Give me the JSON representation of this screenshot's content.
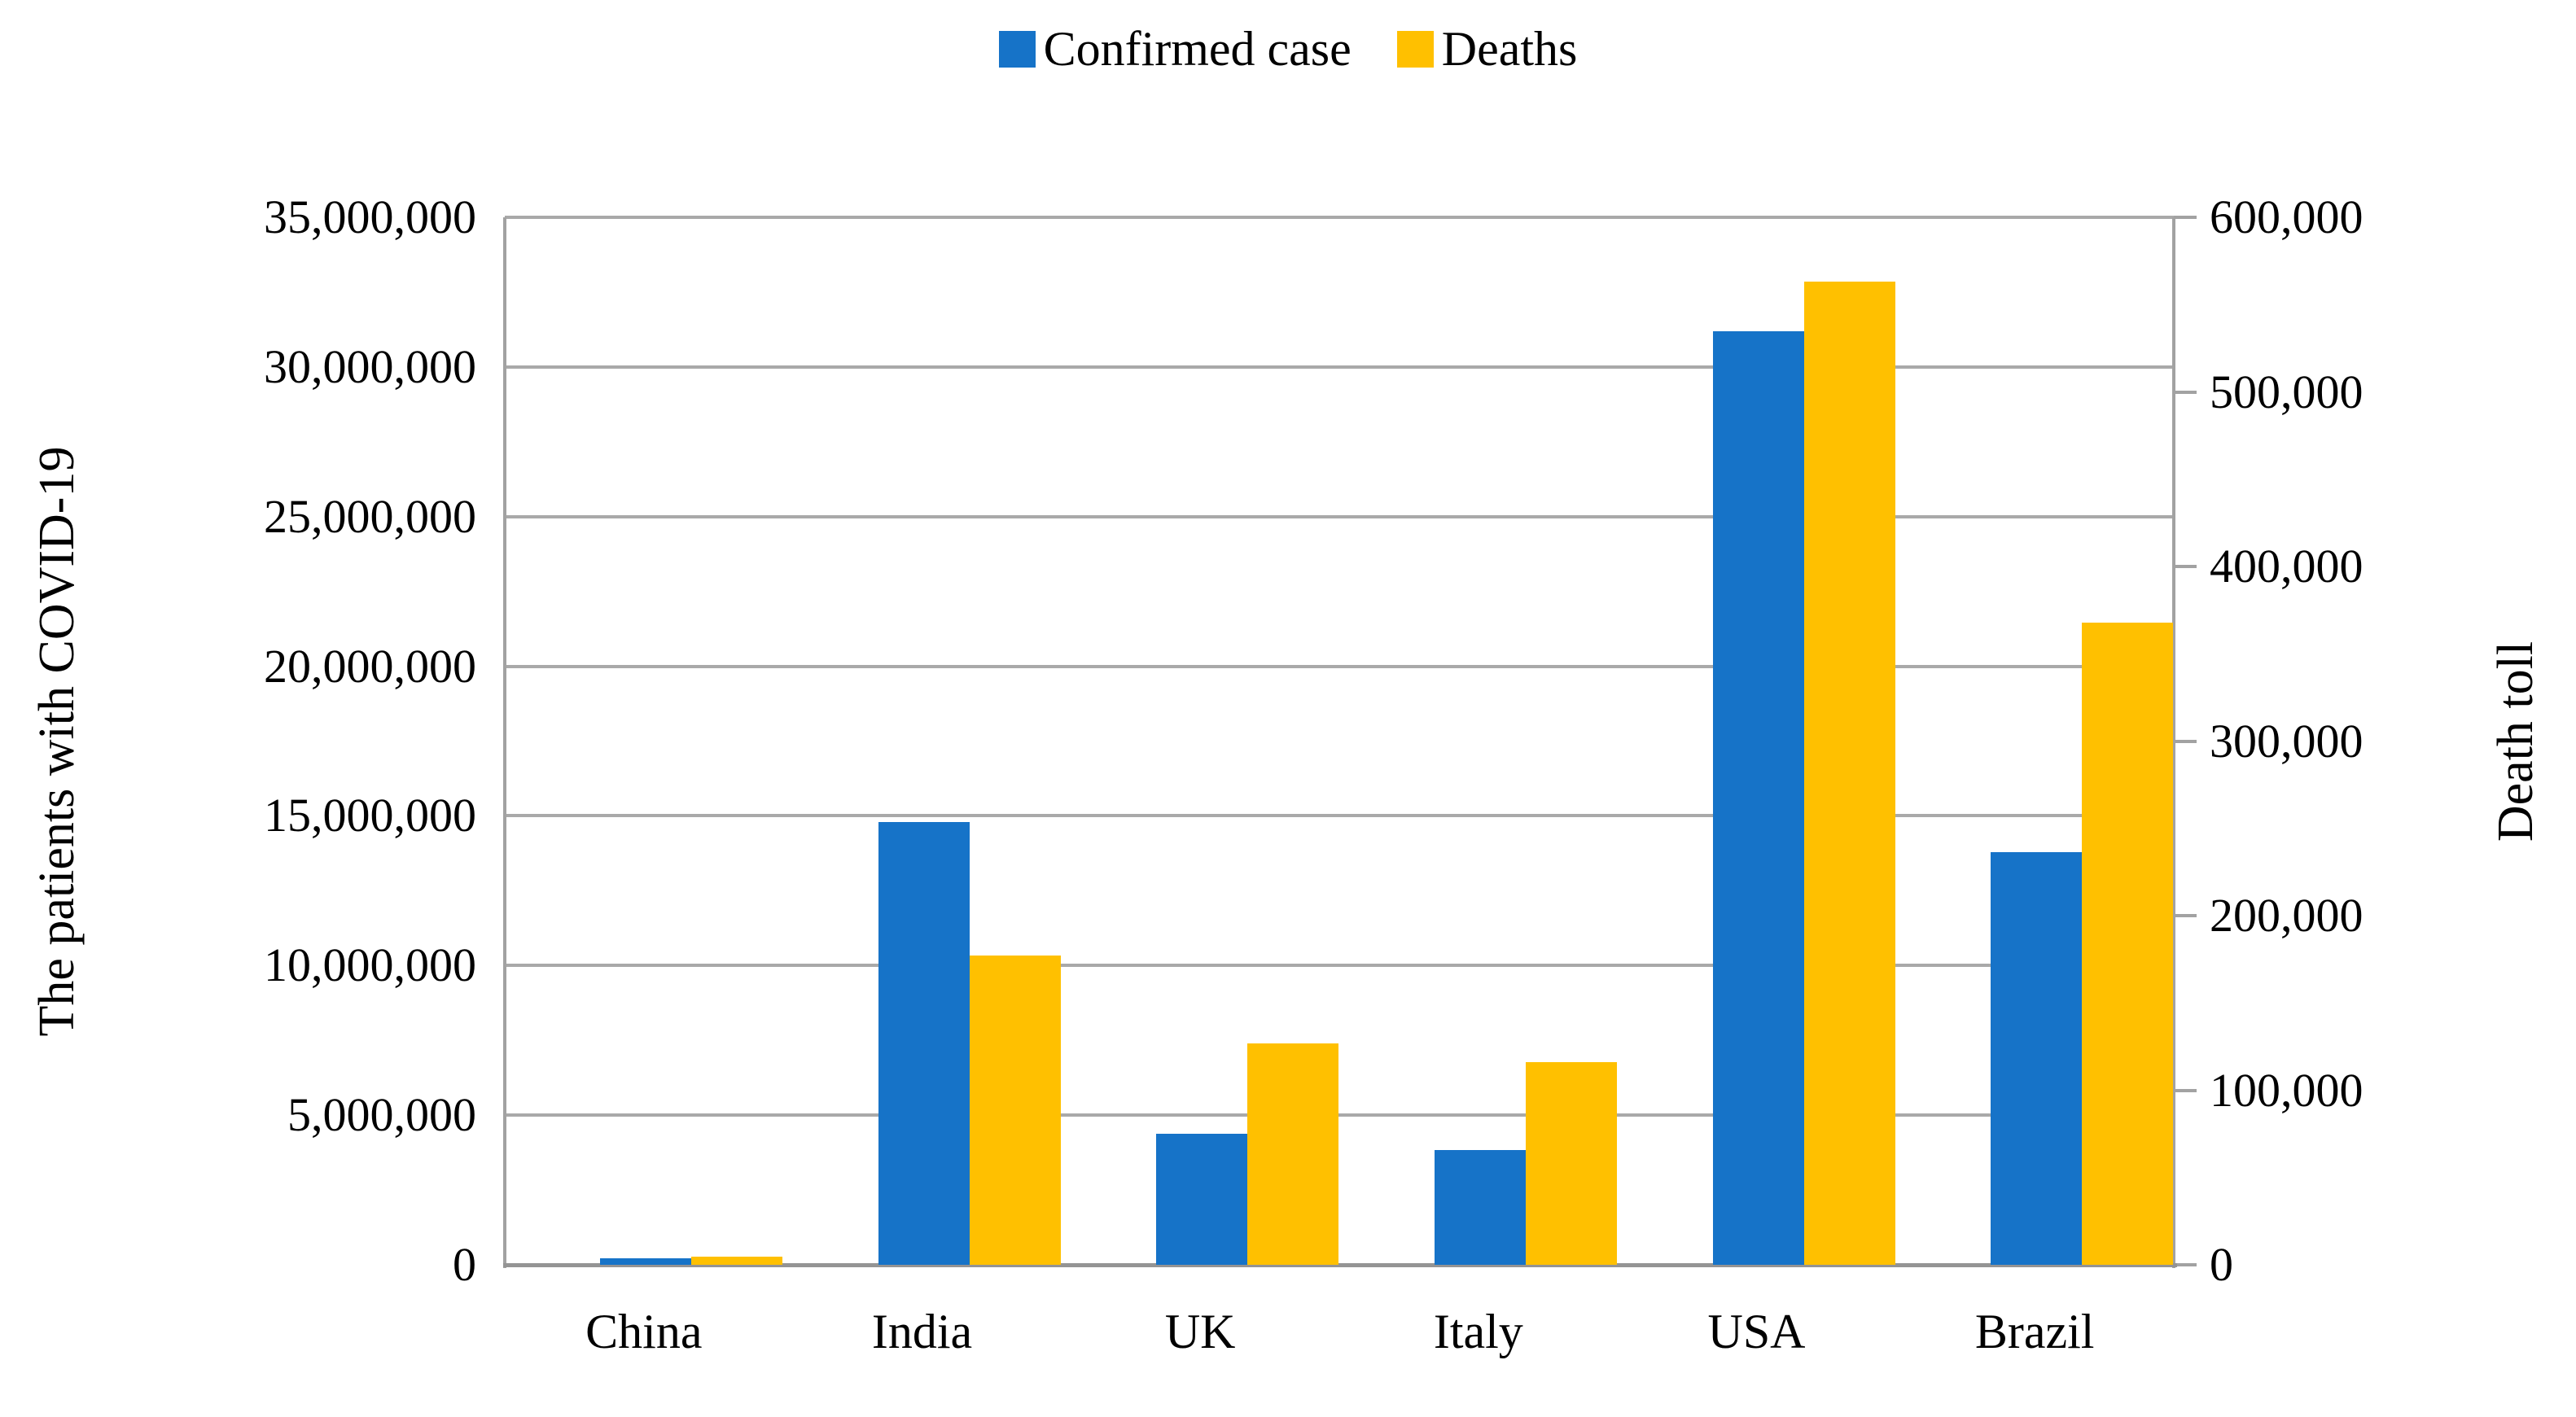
{
  "legend": {
    "confirmed_label": "Confirmed case",
    "deaths_label": "Deaths"
  },
  "chart_data": {
    "type": "bar",
    "subtype": "clustered-dual-axis",
    "categories": [
      "China",
      "India",
      "UK",
      "Italy",
      "USA",
      "Brazil"
    ],
    "series": [
      {
        "name": "Confirmed case",
        "axis": "left",
        "color": "#1673C8",
        "values": [
          102000,
          14800000,
          4390000,
          3840000,
          31200000,
          13800000
        ]
      },
      {
        "name": "Deaths",
        "axis": "right",
        "color": "#FFC000",
        "values": [
          4800,
          177000,
          127000,
          116000,
          563000,
          368000
        ]
      }
    ],
    "left_axis": {
      "title": "The patients with COVID-19",
      "min": 0,
      "max": 35000000,
      "step": 5000000,
      "tick_labels": [
        "35,000,000",
        "30,000,000",
        "25,000,000",
        "20,000,000",
        "15,000,000",
        "10,000,000",
        "5,000,000",
        "0"
      ]
    },
    "right_axis": {
      "title": "Death toll",
      "min": 0,
      "max": 600000,
      "step": 100000,
      "tick_labels": [
        "600,000",
        "500,000",
        "400,000",
        "300,000",
        "200,000",
        "100,000",
        "0"
      ]
    },
    "grid": "horizontal",
    "gridline_color": "#a9a9a9",
    "legend_position": "top-center",
    "background": "#ffffff"
  }
}
